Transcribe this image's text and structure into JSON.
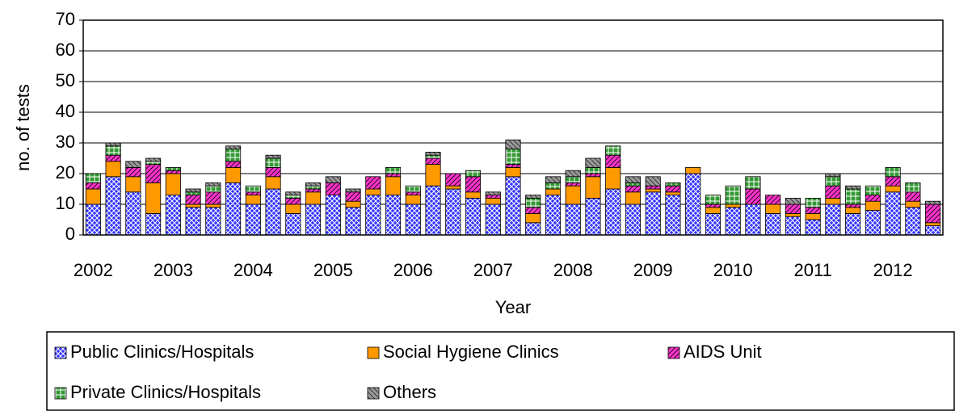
{
  "chart_data": {
    "type": "bar",
    "stacked": true,
    "y_label": "no. of tests",
    "x_label": "Year",
    "categories": [
      "2002",
      null,
      null,
      null,
      "2003",
      null,
      null,
      null,
      "2004",
      null,
      null,
      null,
      "2005",
      null,
      null,
      null,
      "2006",
      null,
      null,
      null,
      "2007",
      null,
      null,
      null,
      "2008",
      null,
      null,
      null,
      "2009",
      null,
      null,
      null,
      "2010",
      null,
      null,
      null,
      "2011",
      null,
      null,
      null,
      "2012",
      null,
      null
    ],
    "series": [
      {
        "name": "Public Clinics/Hospitals",
        "color": "#3333ff",
        "values": [
          10,
          19,
          14,
          7,
          13,
          9,
          9,
          17,
          10,
          15,
          7,
          10,
          13,
          9,
          13,
          13,
          10,
          16,
          15,
          12,
          10,
          19,
          4,
          13,
          10,
          12,
          15,
          10,
          14,
          13,
          20,
          7,
          9,
          10,
          7,
          6,
          5,
          10,
          7,
          8,
          14,
          9,
          3
        ]
      },
      {
        "name": "Social Hygiene Clinics",
        "color": "#ff9900",
        "values": [
          5,
          5,
          5,
          10,
          7,
          1,
          1,
          5,
          3,
          4,
          3,
          4,
          0,
          2,
          2,
          6,
          3,
          7,
          1,
          2,
          2,
          3,
          3,
          2,
          6,
          7,
          7,
          4,
          1,
          1,
          2,
          2,
          1,
          0,
          3,
          1,
          2,
          2,
          2,
          3,
          2,
          2,
          1
        ]
      },
      {
        "name": "AIDS Unit",
        "color": "#ff33cc",
        "values": [
          2,
          2,
          3,
          6,
          1,
          3,
          4,
          2,
          1,
          3,
          2,
          1,
          4,
          3,
          4,
          1,
          1,
          2,
          4,
          5,
          1,
          1,
          2,
          0,
          1,
          1,
          4,
          2,
          1,
          2,
          0,
          1,
          0,
          5,
          3,
          3,
          2,
          4,
          1,
          2,
          3,
          3,
          6
        ]
      },
      {
        "name": "Private Clinics/Hospitals",
        "color": "#339933",
        "values": [
          3,
          3,
          0,
          1,
          1,
          1,
          2,
          4,
          2,
          3,
          1,
          1,
          0,
          0,
          0,
          2,
          2,
          1,
          0,
          2,
          0,
          5,
          3,
          2,
          2,
          2,
          3,
          1,
          0,
          1,
          0,
          3,
          6,
          4,
          0,
          0,
          3,
          3,
          5,
          3,
          3,
          3,
          0
        ]
      },
      {
        "name": "Others",
        "color": "#999999",
        "values": [
          0,
          1,
          2,
          1,
          0,
          1,
          1,
          1,
          0,
          1,
          1,
          1,
          2,
          1,
          0,
          0,
          0,
          1,
          0,
          0,
          1,
          3,
          1,
          2,
          2,
          3,
          0,
          2,
          3,
          0,
          0,
          0,
          0,
          0,
          0,
          2,
          0,
          1,
          1,
          0,
          0,
          0,
          1
        ]
      }
    ],
    "ylim": [
      0,
      70
    ],
    "yticks": [
      0,
      10,
      20,
      30,
      40,
      50,
      60,
      70
    ],
    "grid": true,
    "legend": "bottom"
  }
}
